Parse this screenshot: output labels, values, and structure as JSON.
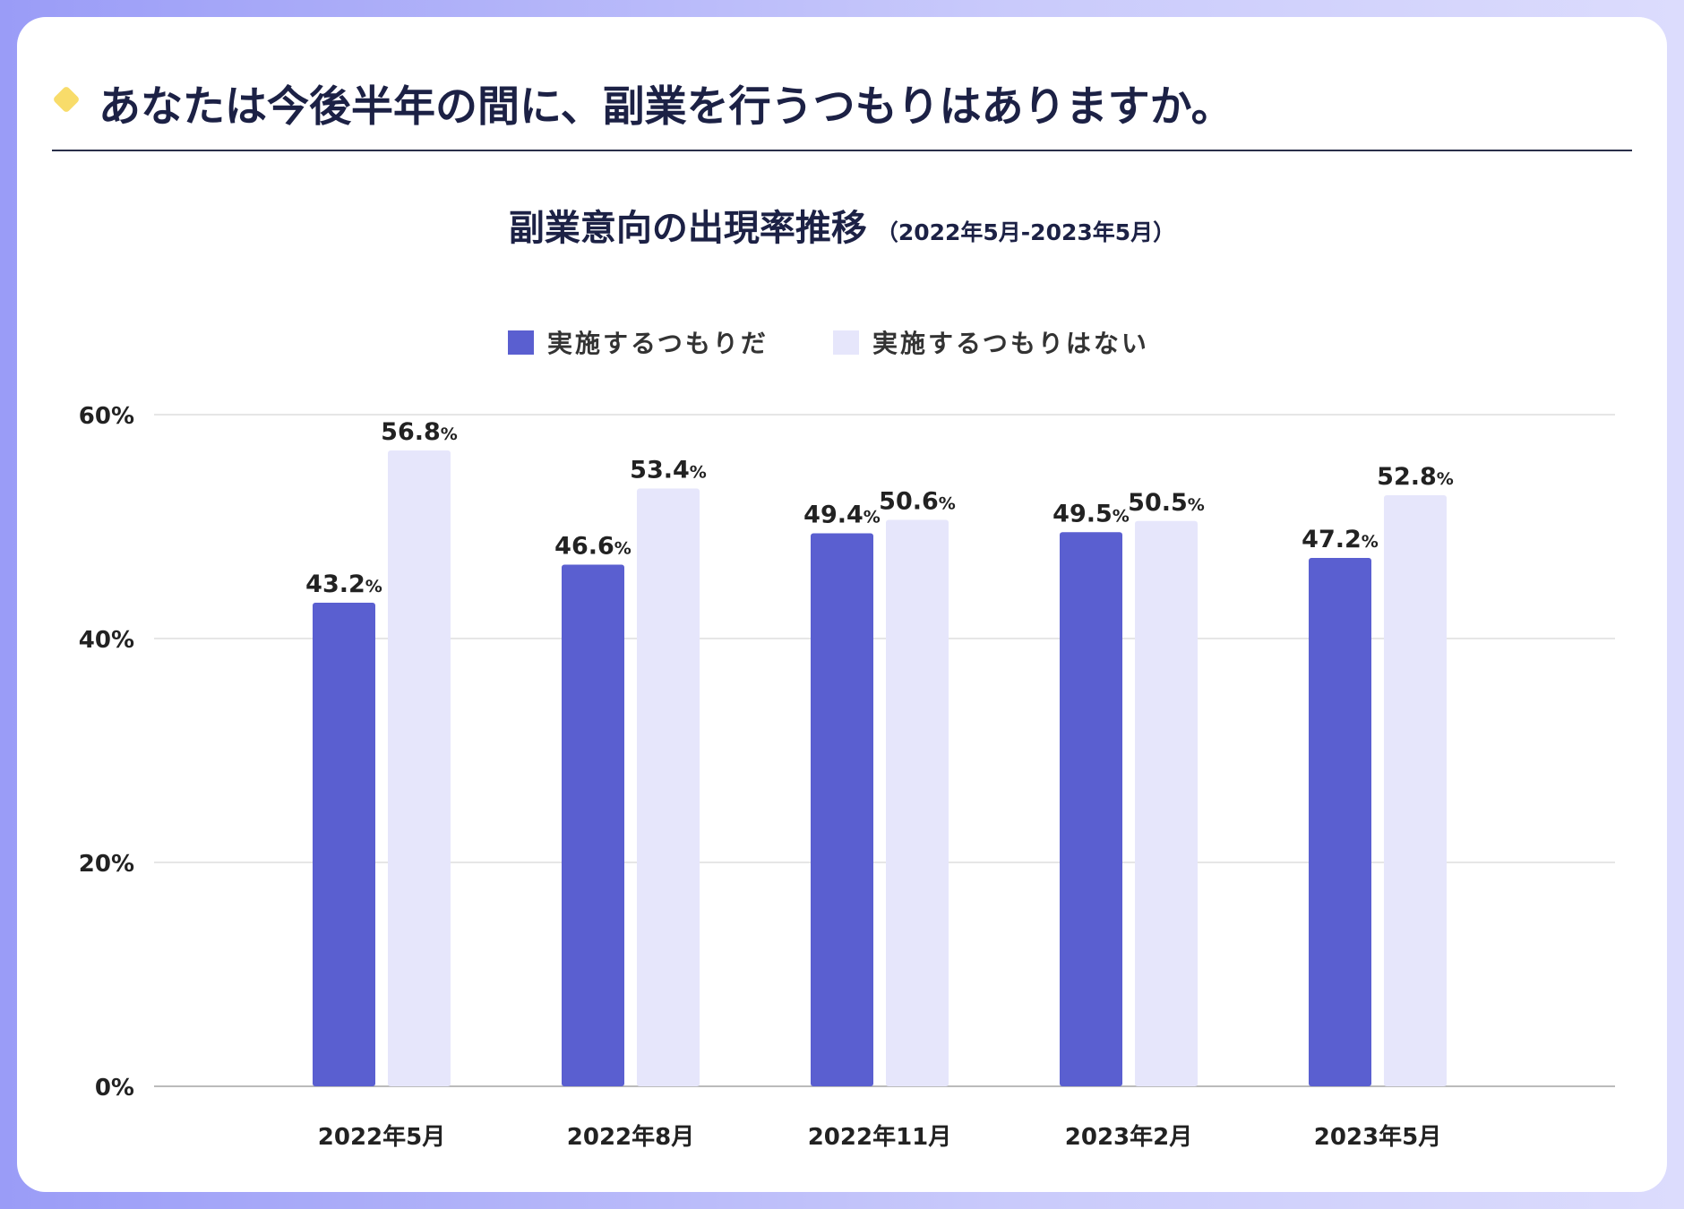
{
  "header": {
    "title": "あなたは今後半年の間に、副業を行うつもりはありますか。"
  },
  "chart_data": {
    "type": "bar",
    "title": "副業意向の出現率推移",
    "subtitle": "（2022年5月-2023年5月）",
    "categories": [
      "2022年5月",
      "2022年8月",
      "2022年11月",
      "2023年2月",
      "2023年5月"
    ],
    "series": [
      {
        "name": "実施するつもりだ",
        "color": "#5a5fd0",
        "values": [
          43.2,
          46.6,
          49.4,
          49.5,
          47.2
        ]
      },
      {
        "name": "実施するつもりはない",
        "color": "#e6e6fb",
        "values": [
          56.8,
          53.4,
          50.6,
          50.5,
          52.8
        ]
      }
    ],
    "yticks": [
      "0%",
      "20%",
      "40%",
      "60%"
    ],
    "ylim": [
      0,
      60
    ],
    "grid": true,
    "legend": "top-center",
    "value_suffix": "%"
  }
}
